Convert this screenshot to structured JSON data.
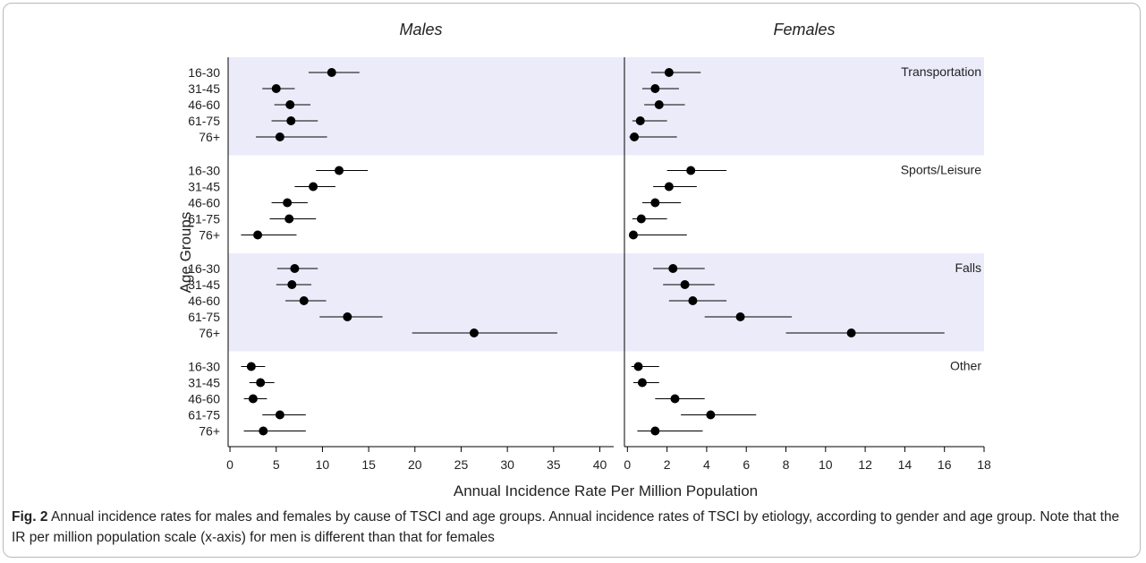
{
  "colors": {
    "band": "#ebebfa",
    "marker": "#000000",
    "axis": "#000000",
    "text": "#222222"
  },
  "caption": {
    "label": "Fig. 2",
    "text": "Annual incidence rates for males and females by cause of TSCI and age groups. Annual incidence rates of TSCI by etiology, according to gender and age group. Note that the IR per million population scale (x-axis) for men is different than that for females"
  },
  "chart_data": {
    "type": "scatter",
    "subtype": "forest-plot-with-error-bars",
    "ylabel": "Age Groups",
    "xlabel": "Annual Incidence Rate Per Million Population",
    "age_groups": [
      "16-30",
      "31-45",
      "46-60",
      "61-75",
      "76+"
    ],
    "causes": [
      "Transportation",
      "Sports/Leisure",
      "Falls",
      "Other"
    ],
    "shaded_causes": [
      "Transportation",
      "Falls"
    ],
    "panels": [
      {
        "title": "Males",
        "xlim": [
          -0.2,
          41.5
        ],
        "xticks": [
          0,
          5,
          10,
          15,
          20,
          25,
          30,
          35,
          40
        ],
        "groups": [
          {
            "cause": "Transportation",
            "values": [
              11.0,
              5.0,
              6.5,
              6.6,
              5.4
            ],
            "lower": [
              8.5,
              3.5,
              4.8,
              4.5,
              2.8
            ],
            "upper": [
              14.0,
              7.0,
              8.7,
              9.5,
              10.5
            ]
          },
          {
            "cause": "Sports/Leisure",
            "values": [
              11.8,
              9.0,
              6.2,
              6.4,
              3.0
            ],
            "lower": [
              9.3,
              7.0,
              4.5,
              4.3,
              1.2
            ],
            "upper": [
              14.9,
              11.4,
              8.4,
              9.3,
              7.2
            ]
          },
          {
            "cause": "Falls",
            "values": [
              7.0,
              6.7,
              8.0,
              12.7,
              26.4
            ],
            "lower": [
              5.1,
              5.0,
              6.0,
              9.7,
              19.7
            ],
            "upper": [
              9.5,
              8.8,
              10.4,
              16.5,
              35.4
            ]
          },
          {
            "cause": "Other",
            "values": [
              2.3,
              3.3,
              2.5,
              5.4,
              3.6
            ],
            "lower": [
              1.2,
              2.1,
              1.5,
              3.5,
              1.5
            ],
            "upper": [
              3.8,
              4.8,
              4.0,
              8.2,
              8.2
            ]
          }
        ]
      },
      {
        "title": "Females",
        "xlim": [
          -0.15,
          18.0
        ],
        "xticks": [
          0,
          2,
          4,
          6,
          8,
          10,
          12,
          14,
          16,
          18
        ],
        "groups": [
          {
            "cause": "Transportation",
            "values": [
              2.1,
              1.4,
              1.6,
              0.65,
              0.35
            ],
            "lower": [
              1.2,
              0.75,
              0.85,
              0.25,
              0.1
            ],
            "upper": [
              3.7,
              2.6,
              2.9,
              2.0,
              2.5
            ]
          },
          {
            "cause": "Sports/Leisure",
            "values": [
              3.2,
              2.1,
              1.4,
              0.7,
              0.3
            ],
            "lower": [
              2.0,
              1.3,
              0.75,
              0.25,
              0.1
            ],
            "upper": [
              5.0,
              3.5,
              2.7,
              2.0,
              3.0
            ]
          },
          {
            "cause": "Falls",
            "values": [
              2.3,
              2.9,
              3.3,
              5.7,
              11.3
            ],
            "lower": [
              1.3,
              1.8,
              2.1,
              3.9,
              8.0
            ],
            "upper": [
              3.9,
              4.4,
              5.0,
              8.3,
              16.0
            ]
          },
          {
            "cause": "Other",
            "values": [
              0.55,
              0.75,
              2.4,
              4.2,
              1.4
            ],
            "lower": [
              0.2,
              0.3,
              1.4,
              2.7,
              0.5
            ],
            "upper": [
              1.6,
              1.6,
              3.9,
              6.5,
              3.8
            ]
          }
        ]
      }
    ]
  }
}
